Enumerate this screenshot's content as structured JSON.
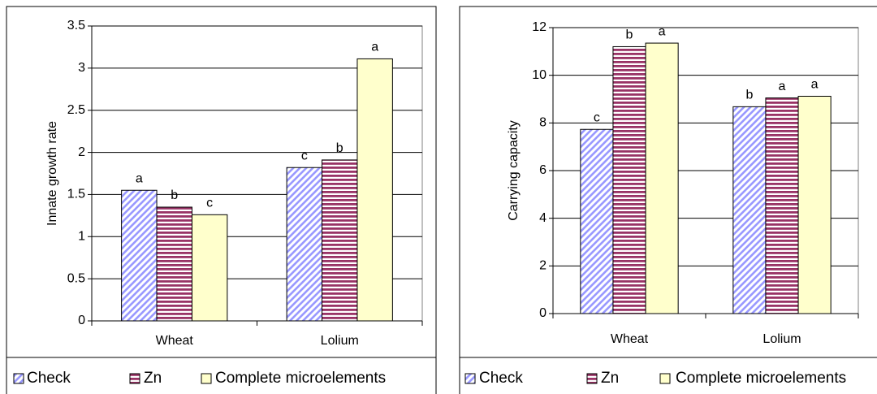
{
  "chart_data": [
    {
      "type": "bar",
      "y_label": "Innate  growth  rate",
      "categories": [
        "Wheat",
        "Lolium"
      ],
      "series": [
        {
          "name": "Check",
          "color": "#9999ff",
          "values": [
            1.55,
            1.82
          ],
          "letters": [
            "a",
            "c"
          ]
        },
        {
          "name": "Zn",
          "color": "#993366",
          "values": [
            1.35,
            1.91
          ],
          "letters": [
            "b",
            "b"
          ]
        },
        {
          "name": "Complete microelements",
          "color": "#ffffcc",
          "values": [
            1.26,
            3.11
          ],
          "letters": [
            "c",
            "a"
          ]
        }
      ],
      "ylim": [
        0,
        3.5
      ],
      "yticks": [
        0,
        0.5,
        1,
        1.5,
        2,
        2.5,
        3,
        3.5
      ],
      "grid": true
    },
    {
      "type": "bar",
      "y_label": "Carrying  capacity",
      "categories": [
        "Wheat",
        "Lolium"
      ],
      "series": [
        {
          "name": "Check",
          "color": "#9999ff",
          "values": [
            7.73,
            8.68
          ],
          "letters": [
            "c",
            "b"
          ]
        },
        {
          "name": "Zn",
          "color": "#993366",
          "values": [
            11.2,
            9.05
          ],
          "letters": [
            "b",
            "a"
          ]
        },
        {
          "name": "Complete microelements",
          "color": "#ffffcc",
          "values": [
            11.35,
            9.12
          ],
          "letters": [
            "a",
            "a"
          ]
        }
      ],
      "ylim": [
        0,
        12
      ],
      "yticks": [
        0,
        2,
        4,
        6,
        8,
        10,
        12
      ],
      "grid": true
    }
  ]
}
